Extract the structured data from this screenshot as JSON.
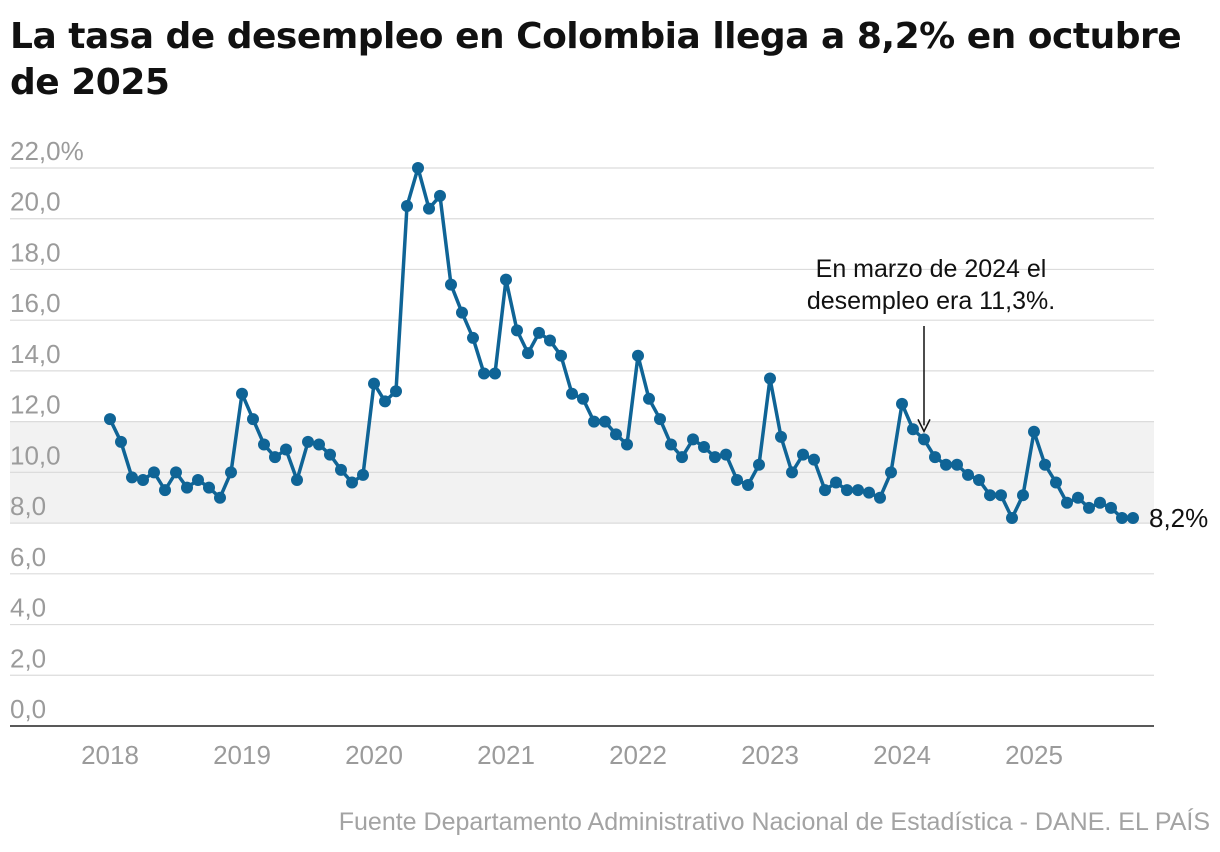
{
  "title": "La tasa de desempleo en Colombia llega a 8,2% en octubre de 2025",
  "source": "Fuente Departamento Administrativo Nacional de Estadística - DANE. EL PAÍS",
  "colors": {
    "line": "#0f6496",
    "band": "#f2f2f2",
    "grid": "#dcdcdc",
    "axis": "#222222",
    "tick_text": "#9b9b9b"
  },
  "chart_data": {
    "type": "line",
    "title": "La tasa de desempleo en Colombia llega a 8,2% en octubre de 2025",
    "xlabel": "",
    "ylabel": "",
    "ylim": [
      0,
      22
    ],
    "yticks": [
      0,
      2,
      4,
      6,
      8,
      10,
      12,
      14,
      16,
      18,
      20,
      22
    ],
    "ytick_labels": [
      "0,0",
      "2,0",
      "4,0",
      "6,0",
      "8,0",
      "10,0",
      "12,0",
      "14,0",
      "16,0",
      "18,0",
      "20,0",
      "22,0%"
    ],
    "xticks": [
      "2018",
      "2019",
      "2020",
      "2021",
      "2022",
      "2023",
      "2024",
      "2025"
    ],
    "grid": true,
    "shaded_band": [
      8,
      12
    ],
    "x_start": "2018-01",
    "x_end": "2025-10",
    "series": [
      {
        "values": [
          12.1,
          11.2,
          9.8,
          9.7,
          10.0,
          9.3,
          10.0,
          9.4,
          9.7,
          9.4,
          9.0,
          10.0,
          13.1,
          12.1,
          11.1,
          10.6,
          10.9,
          9.7,
          11.2,
          11.1,
          10.7,
          10.1,
          9.6,
          9.9,
          13.5,
          12.8,
          13.2,
          20.5,
          22.0,
          20.4,
          20.9,
          17.4,
          16.3,
          15.3,
          13.9,
          13.9,
          17.6,
          15.6,
          14.7,
          15.5,
          15.2,
          14.6,
          13.1,
          12.9,
          12.0,
          12.0,
          11.5,
          11.1,
          14.6,
          12.9,
          12.1,
          11.1,
          10.6,
          11.3,
          11.0,
          10.6,
          10.7,
          9.7,
          9.5,
          10.3,
          13.7,
          11.4,
          10.0,
          10.7,
          10.5,
          9.3,
          9.6,
          9.3,
          9.3,
          9.2,
          9.0,
          10.0,
          12.7,
          11.7,
          11.3,
          10.6,
          10.3,
          10.3,
          9.9,
          9.7,
          9.1,
          9.1,
          8.2,
          9.1,
          11.6,
          10.3,
          9.6,
          8.8,
          9.0,
          8.6,
          8.8,
          8.6,
          8.2,
          8.2
        ]
      }
    ],
    "end_label": "8,2%",
    "annotation": {
      "lines": [
        "En marzo de 2024 el",
        "desempleo era 11,3%."
      ],
      "target_date": "2024-03",
      "target_value": 11.3
    }
  }
}
